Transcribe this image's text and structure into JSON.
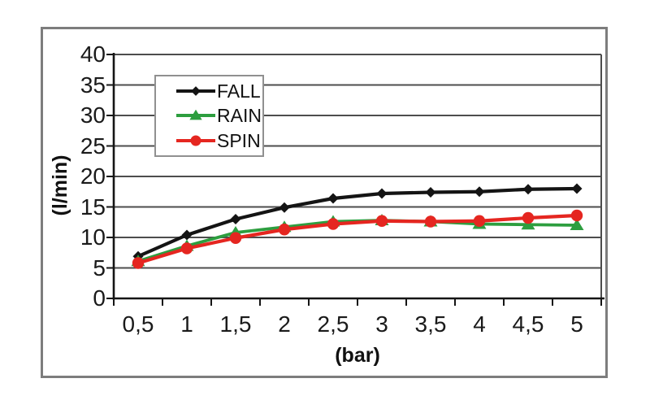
{
  "chart_data": {
    "type": "line",
    "title": "",
    "xlabel": "(bar)",
    "ylabel": "(l/min)",
    "categories": [
      "0,5",
      "1",
      "1,5",
      "2",
      "2,5",
      "3",
      "3,5",
      "4",
      "4,5",
      "5"
    ],
    "x_values": [
      0.5,
      1,
      1.5,
      2,
      2.5,
      3,
      3.5,
      4,
      4.5,
      5
    ],
    "ylim": [
      0,
      40
    ],
    "y_ticks": [
      0,
      5,
      10,
      15,
      20,
      25,
      30,
      35,
      40
    ],
    "y_tick_labels": [
      "0",
      "5",
      "10",
      "15",
      "20",
      "25",
      "30",
      "35",
      "40"
    ],
    "grid": "horizontal",
    "legend_position": "inside-top-left",
    "series": [
      {
        "name": "FALL",
        "color": "#141414",
        "marker": "diamond",
        "values": [
          6.9,
          10.4,
          13.0,
          14.9,
          16.4,
          17.2,
          17.4,
          17.5,
          17.9,
          18.0
        ]
      },
      {
        "name": "RAIN",
        "color": "#2d9e3f",
        "marker": "triangle",
        "values": [
          6.1,
          8.6,
          10.8,
          11.7,
          12.6,
          12.8,
          12.6,
          12.2,
          12.1,
          12.0
        ]
      },
      {
        "name": "SPIN",
        "color": "#e52620",
        "marker": "circle",
        "values": [
          5.8,
          8.2,
          9.9,
          11.3,
          12.2,
          12.7,
          12.6,
          12.7,
          13.2,
          13.6
        ]
      }
    ]
  },
  "colors": {
    "background": "#ffffff",
    "frame_border": "#7d7d7d",
    "gridline": "#4d4d4d",
    "axis": "#151515",
    "legend_border": "#909090",
    "text": "#1a1a1a"
  }
}
